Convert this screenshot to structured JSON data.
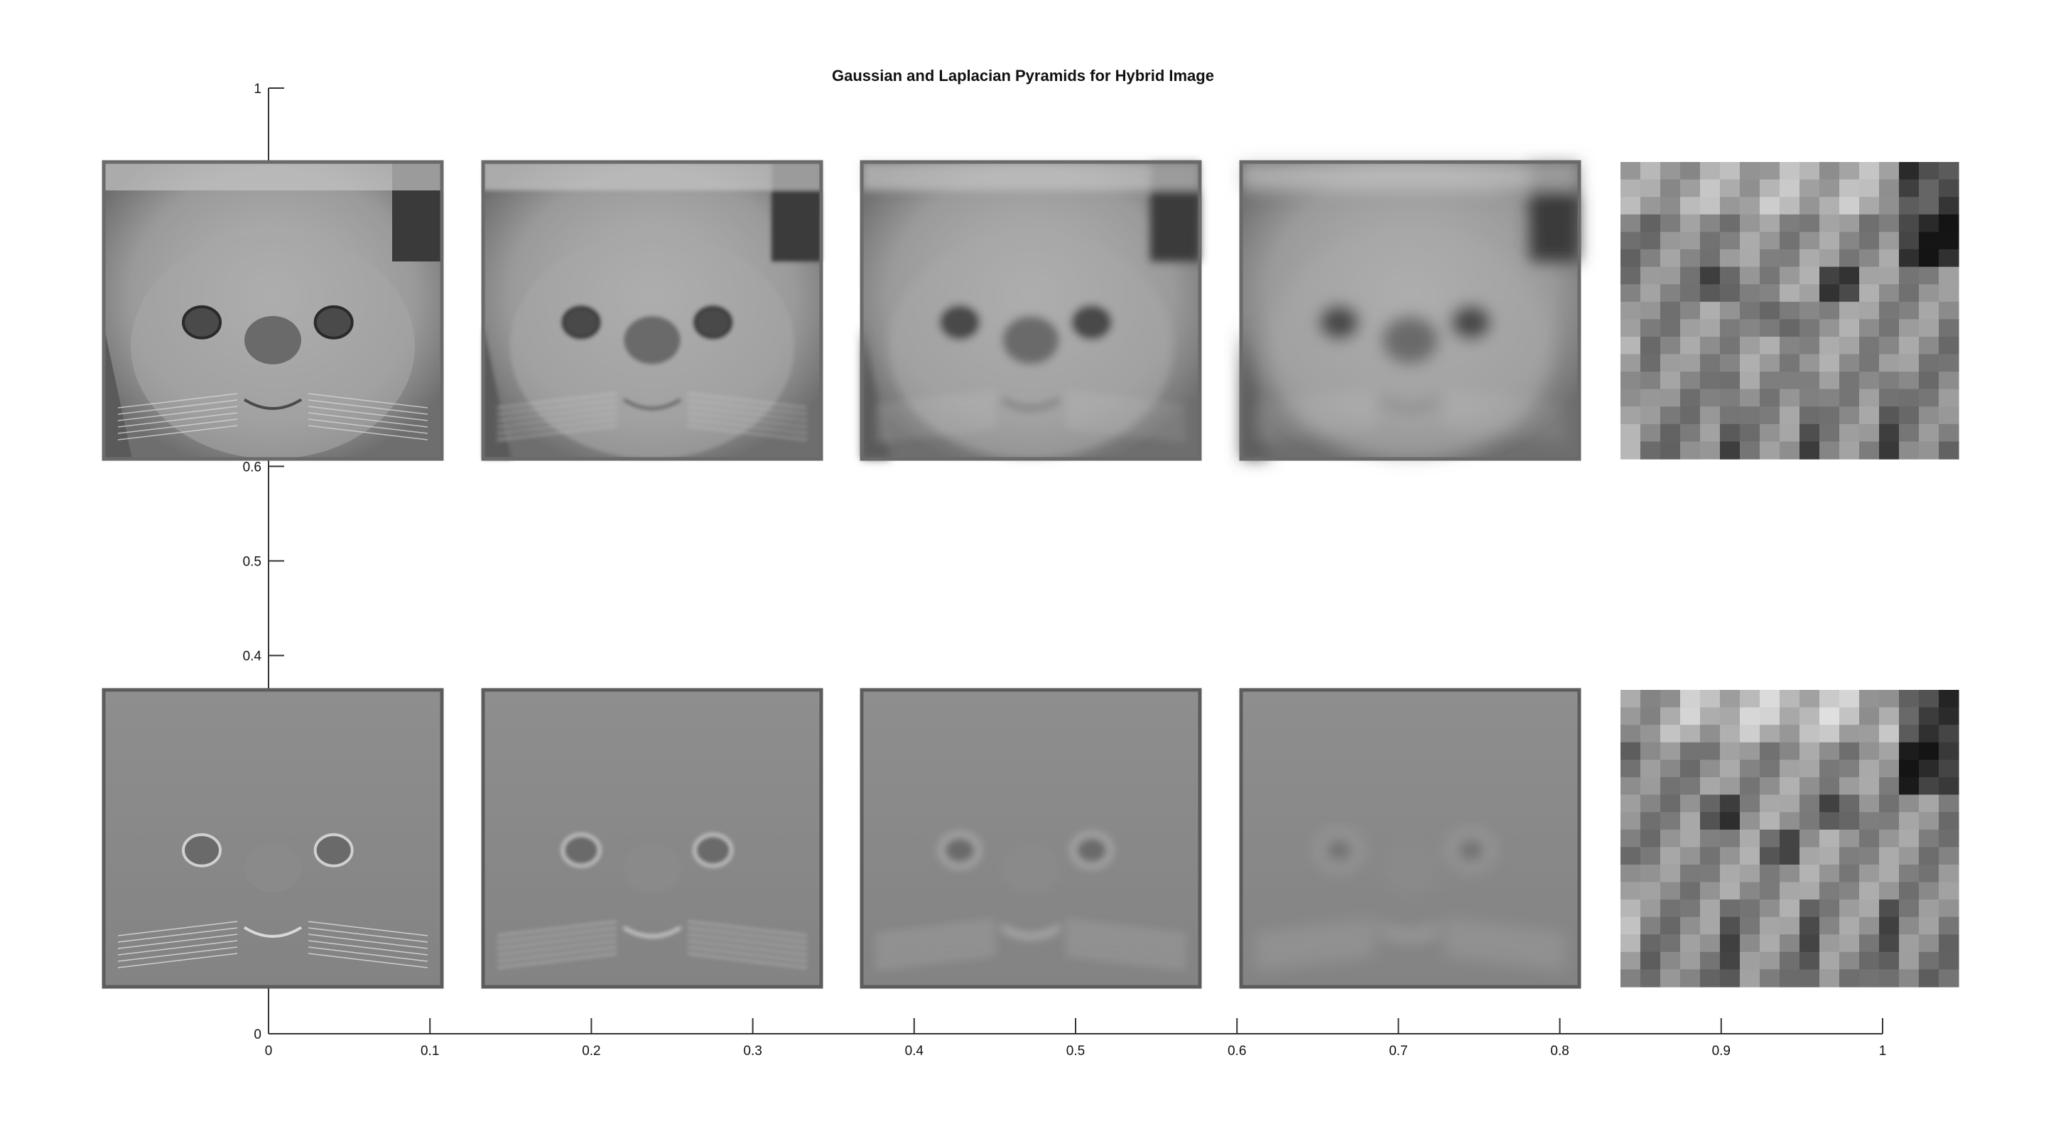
{
  "figure": {
    "title": "Gaussian and Laplacian Pyramids for Hybrid Image"
  },
  "chart_data": {
    "type": "image-grid",
    "title": "Gaussian and Laplacian Pyramids for Hybrid Image",
    "xlabel": "",
    "ylabel": "",
    "xlim": [
      0,
      1
    ],
    "ylim": [
      0,
      1
    ],
    "xticks": [
      0,
      0.1,
      0.2,
      0.3,
      0.4,
      0.5,
      0.6,
      0.7,
      0.8,
      0.9,
      1
    ],
    "xtick_labels": [
      "0",
      "0.1",
      "0.2",
      "0.3",
      "0.4",
      "0.5",
      "0.6",
      "0.7",
      "0.8",
      "0.9",
      "1"
    ],
    "yticks": [
      0,
      0.4,
      0.5,
      0.6,
      1
    ],
    "ytick_labels": [
      "0",
      "0.4",
      "0.5",
      "0.6",
      "1"
    ],
    "grid": false,
    "rows": [
      {
        "row": "gaussian",
        "levels": 5,
        "pixelated_level": 4
      },
      {
        "row": "laplacian",
        "levels": 5,
        "pixelated_level": 4
      }
    ],
    "colors": {
      "axis": "#333333",
      "text": "#111111",
      "image_mid": "#8a8a8a"
    }
  }
}
